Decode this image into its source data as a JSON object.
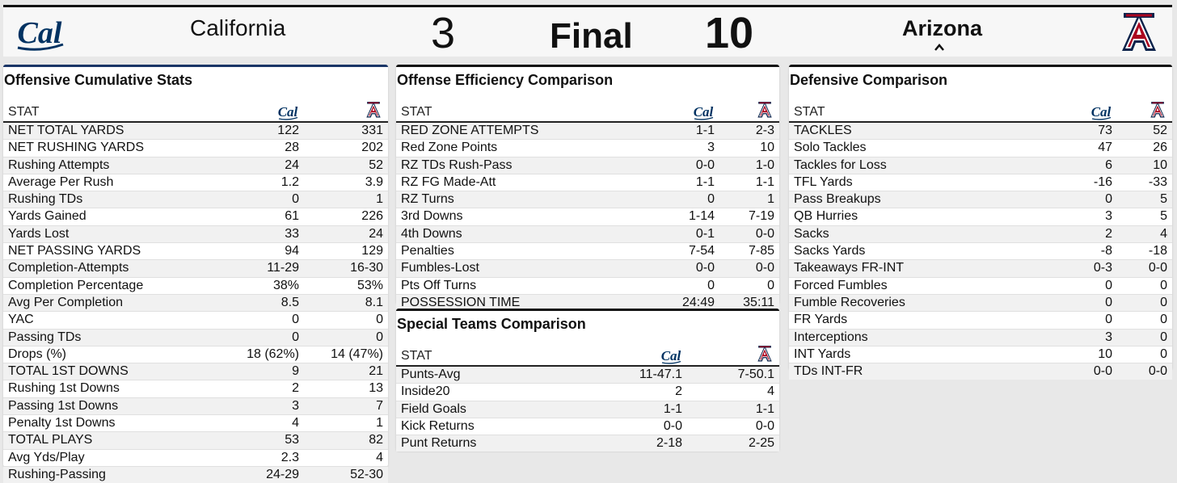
{
  "scoreboard": {
    "home_team": "California",
    "home_score": "3",
    "status": "Final",
    "away_score": "10",
    "away_team": "Arizona",
    "home_logo_text": "Cal",
    "away_logo_text": "A"
  },
  "colors": {
    "cal_blue": "#003262",
    "az_navy": "#0C234B",
    "az_red": "#AB0520",
    "page_bg": "#e8e8e8"
  },
  "stat_header": "STAT",
  "offensive": {
    "title": "Offensive Cumulative Stats",
    "rows": [
      [
        "NET TOTAL YARDS",
        "122",
        "331"
      ],
      [
        "NET RUSHING YARDS",
        "28",
        "202"
      ],
      [
        "Rushing Attempts",
        "24",
        "52"
      ],
      [
        "Average Per Rush",
        "1.2",
        "3.9"
      ],
      [
        "Rushing TDs",
        "0",
        "1"
      ],
      [
        "Yards Gained",
        "61",
        "226"
      ],
      [
        "Yards Lost",
        "33",
        "24"
      ],
      [
        "NET PASSING YARDS",
        "94",
        "129"
      ],
      [
        "Completion-Attempts",
        "11-29",
        "16-30"
      ],
      [
        "Completion Percentage",
        "38%",
        "53%"
      ],
      [
        "Avg Per Completion",
        "8.5",
        "8.1"
      ],
      [
        "YAC",
        "0",
        "0"
      ],
      [
        "Passing TDs",
        "0",
        "0"
      ],
      [
        "Drops (%)",
        "18 (62%)",
        "14 (47%)"
      ],
      [
        "TOTAL 1ST DOWNS",
        "9",
        "21"
      ],
      [
        "Rushing 1st Downs",
        "2",
        "13"
      ],
      [
        "Passing 1st Downs",
        "3",
        "7"
      ],
      [
        "Penalty 1st Downs",
        "4",
        "1"
      ],
      [
        "TOTAL PLAYS",
        "53",
        "82"
      ],
      [
        "Avg Yds/Play",
        "2.3",
        "4"
      ],
      [
        "Rushing-Passing",
        "24-29",
        "52-30"
      ]
    ]
  },
  "efficiency": {
    "title": "Offense Efficiency Comparison",
    "rows": [
      [
        "RED ZONE ATTEMPTS",
        "1-1",
        "2-3"
      ],
      [
        "Red Zone Points",
        "3",
        "10"
      ],
      [
        "RZ TDs Rush-Pass",
        "0-0",
        "1-0"
      ],
      [
        "RZ FG Made-Att",
        "1-1",
        "1-1"
      ],
      [
        "RZ Turns",
        "0",
        "1"
      ],
      [
        "3rd Downs",
        "1-14",
        "7-19"
      ],
      [
        "4th Downs",
        "0-1",
        "0-0"
      ],
      [
        "Penalties",
        "7-54",
        "7-85"
      ],
      [
        "Fumbles-Lost",
        "0-0",
        "0-0"
      ],
      [
        "Pts Off Turns",
        "0",
        "0"
      ],
      [
        "POSSESSION TIME",
        "24:49",
        "35:11"
      ]
    ]
  },
  "special": {
    "title": "Special Teams Comparison",
    "rows": [
      [
        "Punts-Avg",
        "11-47.1",
        "7-50.1"
      ],
      [
        "Inside20",
        "2",
        "4"
      ],
      [
        "Field Goals",
        "1-1",
        "1-1"
      ],
      [
        "Kick Returns",
        "0-0",
        "0-0"
      ],
      [
        "Punt Returns",
        "2-18",
        "2-25"
      ]
    ]
  },
  "defensive": {
    "title": "Defensive Comparison",
    "rows": [
      [
        "TACKLES",
        "73",
        "52"
      ],
      [
        "Solo Tackles",
        "47",
        "26"
      ],
      [
        "Tackles for Loss",
        "6",
        "10"
      ],
      [
        "TFL Yards",
        "-16",
        "-33"
      ],
      [
        "Pass Breakups",
        "0",
        "5"
      ],
      [
        "QB Hurries",
        "3",
        "5"
      ],
      [
        "Sacks",
        "2",
        "4"
      ],
      [
        "Sacks Yards",
        "-8",
        "-18"
      ],
      [
        "Takeaways FR-INT",
        "0-3",
        "0-0"
      ],
      [
        "Forced Fumbles",
        "0",
        "0"
      ],
      [
        "Fumble Recoveries",
        "0",
        "0"
      ],
      [
        "FR Yards",
        "0",
        "0"
      ],
      [
        "Interceptions",
        "3",
        "0"
      ],
      [
        "INT Yards",
        "10",
        "0"
      ],
      [
        "TDs INT-FR",
        "0-0",
        "0-0"
      ]
    ]
  }
}
